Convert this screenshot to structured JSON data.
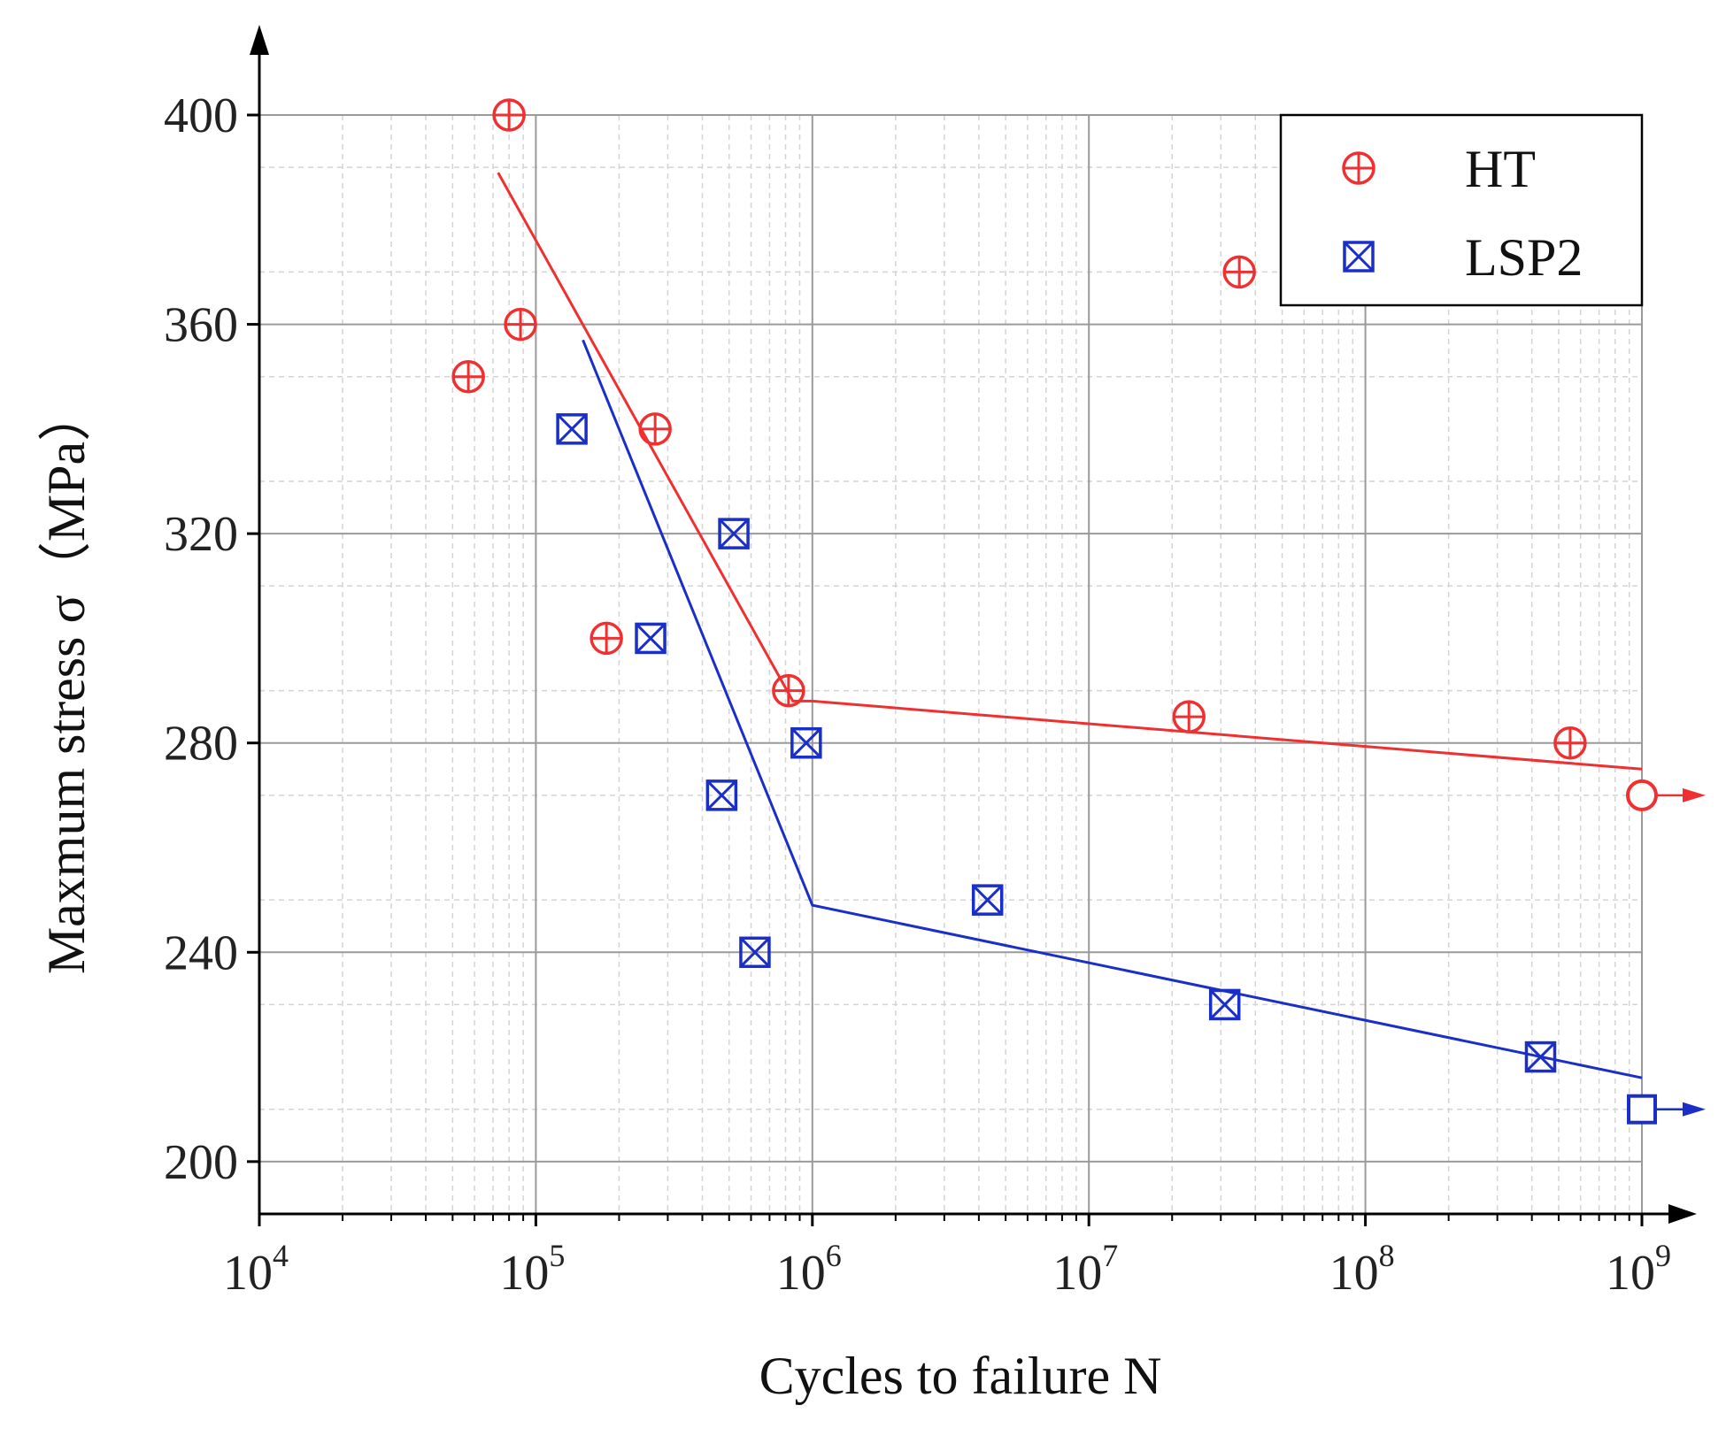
{
  "chart_data": {
    "type": "scatter",
    "title": "",
    "xlabel": "Cycles to failure N",
    "ylabel": "Maxmum stress σ（MPa）",
    "xscale": "log",
    "xlim": [
      10000,
      1000000000
    ],
    "ylim": [
      190,
      400
    ],
    "grid": true,
    "legend_position": "top-right",
    "x_ticks": [
      {
        "base": "10",
        "exp": "4",
        "value": 10000
      },
      {
        "base": "10",
        "exp": "5",
        "value": 100000
      },
      {
        "base": "10",
        "exp": "6",
        "value": 1000000
      },
      {
        "base": "10",
        "exp": "7",
        "value": 10000000
      },
      {
        "base": "10",
        "exp": "8",
        "value": 100000000
      },
      {
        "base": "10",
        "exp": "9",
        "value": 1000000000
      }
    ],
    "y_ticks": [
      {
        "label": "200",
        "value": 200
      },
      {
        "label": "240",
        "value": 240
      },
      {
        "label": "280",
        "value": 280
      },
      {
        "label": "320",
        "value": 320
      },
      {
        "label": "360",
        "value": 360
      },
      {
        "label": "400",
        "value": 400
      }
    ],
    "series": [
      {
        "name": "HT",
        "color": "#f03030",
        "marker": "circle-plus",
        "points": [
          {
            "x": 80000,
            "y": 400
          },
          {
            "x": 88000,
            "y": 360
          },
          {
            "x": 57000,
            "y": 350
          },
          {
            "x": 270000,
            "y": 340
          },
          {
            "x": 180000,
            "y": 300
          },
          {
            "x": 820000,
            "y": 290
          },
          {
            "x": 23000000,
            "y": 285
          },
          {
            "x": 35000000,
            "y": 370
          },
          {
            "x": 550000000,
            "y": 280
          }
        ],
        "runouts": [
          {
            "x": 1000000000,
            "y": 270
          }
        ],
        "fit": [
          {
            "x": 73000,
            "y": 389
          },
          {
            "x": 850000,
            "y": 288
          },
          {
            "x": 1000000,
            "y": 288
          },
          {
            "x": 1000000000,
            "y": 275
          }
        ]
      },
      {
        "name": "LSP2",
        "color": "#1a2ec8",
        "marker": "square-x",
        "points": [
          {
            "x": 135000,
            "y": 340
          },
          {
            "x": 520000,
            "y": 320
          },
          {
            "x": 260000,
            "y": 300
          },
          {
            "x": 950000,
            "y": 280
          },
          {
            "x": 470000,
            "y": 270
          },
          {
            "x": 620000,
            "y": 240
          },
          {
            "x": 4300000,
            "y": 250
          },
          {
            "x": 31000000,
            "y": 230
          },
          {
            "x": 430000000,
            "y": 220
          }
        ],
        "runouts": [
          {
            "x": 1000000000,
            "y": 210
          }
        ],
        "fit": [
          {
            "x": 148000,
            "y": 357
          },
          {
            "x": 1000000,
            "y": 249
          },
          {
            "x": 1000000000,
            "y": 216
          }
        ]
      }
    ]
  }
}
